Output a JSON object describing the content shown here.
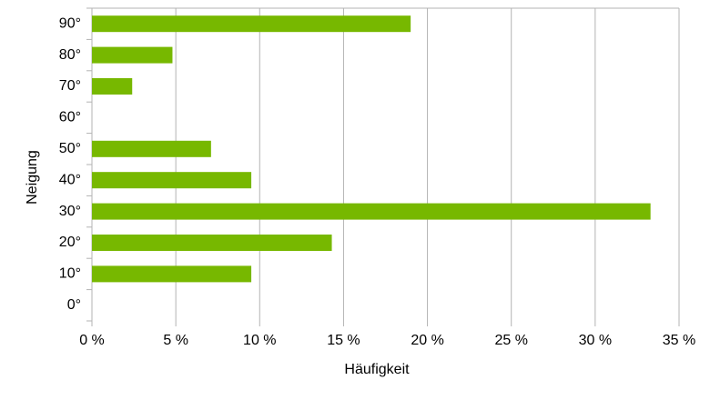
{
  "chart_data": {
    "type": "barh",
    "x_label": "Häufigkeit",
    "y_label": "Neigung",
    "categories": [
      "0°",
      "10°",
      "20°",
      "30°",
      "40°",
      "50°",
      "60°",
      "70°",
      "80°",
      "90°"
    ],
    "values": [
      0,
      9.5,
      14.3,
      33.3,
      9.5,
      7.1,
      0,
      2.4,
      4.8,
      19.0
    ],
    "color": "#77b800",
    "xlim": [
      0,
      35
    ],
    "xticks": [
      {
        "value": 0,
        "label": "0 %"
      },
      {
        "value": 5,
        "label": "5 %"
      },
      {
        "value": 10,
        "label": "10 %"
      },
      {
        "value": 15,
        "label": "15 %"
      },
      {
        "value": 20,
        "label": "20 %"
      },
      {
        "value": 25,
        "label": "25 %"
      },
      {
        "value": 30,
        "label": "30 %"
      },
      {
        "value": 35,
        "label": "35 %"
      }
    ],
    "grid": true
  }
}
